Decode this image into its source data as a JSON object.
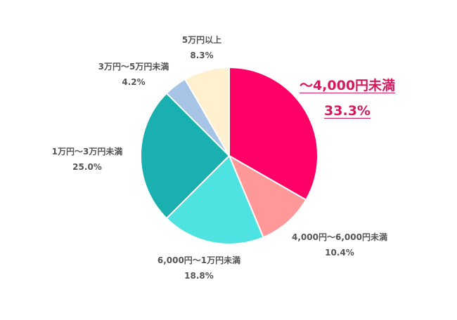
{
  "chart_data": {
    "type": "pie",
    "title": "",
    "start_angle": "12 o'clock",
    "direction": "clockwise",
    "categories": [
      "〜4,000円未満",
      "4,000円〜6,000円未満",
      "6,000円〜1万円未満",
      "1万円〜3万円未満",
      "3万円〜5万円未満",
      "5万円以上"
    ],
    "values": [
      33.3,
      10.4,
      18.8,
      25.0,
      4.2,
      8.3
    ],
    "value_labels": [
      "33.3%",
      "10.4%",
      "18.8%",
      "25.0%",
      "4.2%",
      "8.3%"
    ],
    "colors": [
      "#ff0066",
      "#ff9999",
      "#4ee3e0",
      "#1bb0b0",
      "#a6c4e6",
      "#fff1d0"
    ],
    "highlighted": "〜4,000円未満",
    "highlight_color": "#d6195f",
    "legend": "none"
  },
  "labels": [
    {
      "name": "〜4,000円未満",
      "pct": "33.3%"
    },
    {
      "name": "4,000円〜6,000円未満",
      "pct": "10.4%"
    },
    {
      "name": "6,000円〜1万円未満",
      "pct": "18.8%"
    },
    {
      "name": "1万円〜3万円未満",
      "pct": "25.0%"
    },
    {
      "name": "3万円〜5万円未満",
      "pct": "4.2%"
    },
    {
      "name": "5万円以上",
      "pct": "8.3%"
    }
  ]
}
